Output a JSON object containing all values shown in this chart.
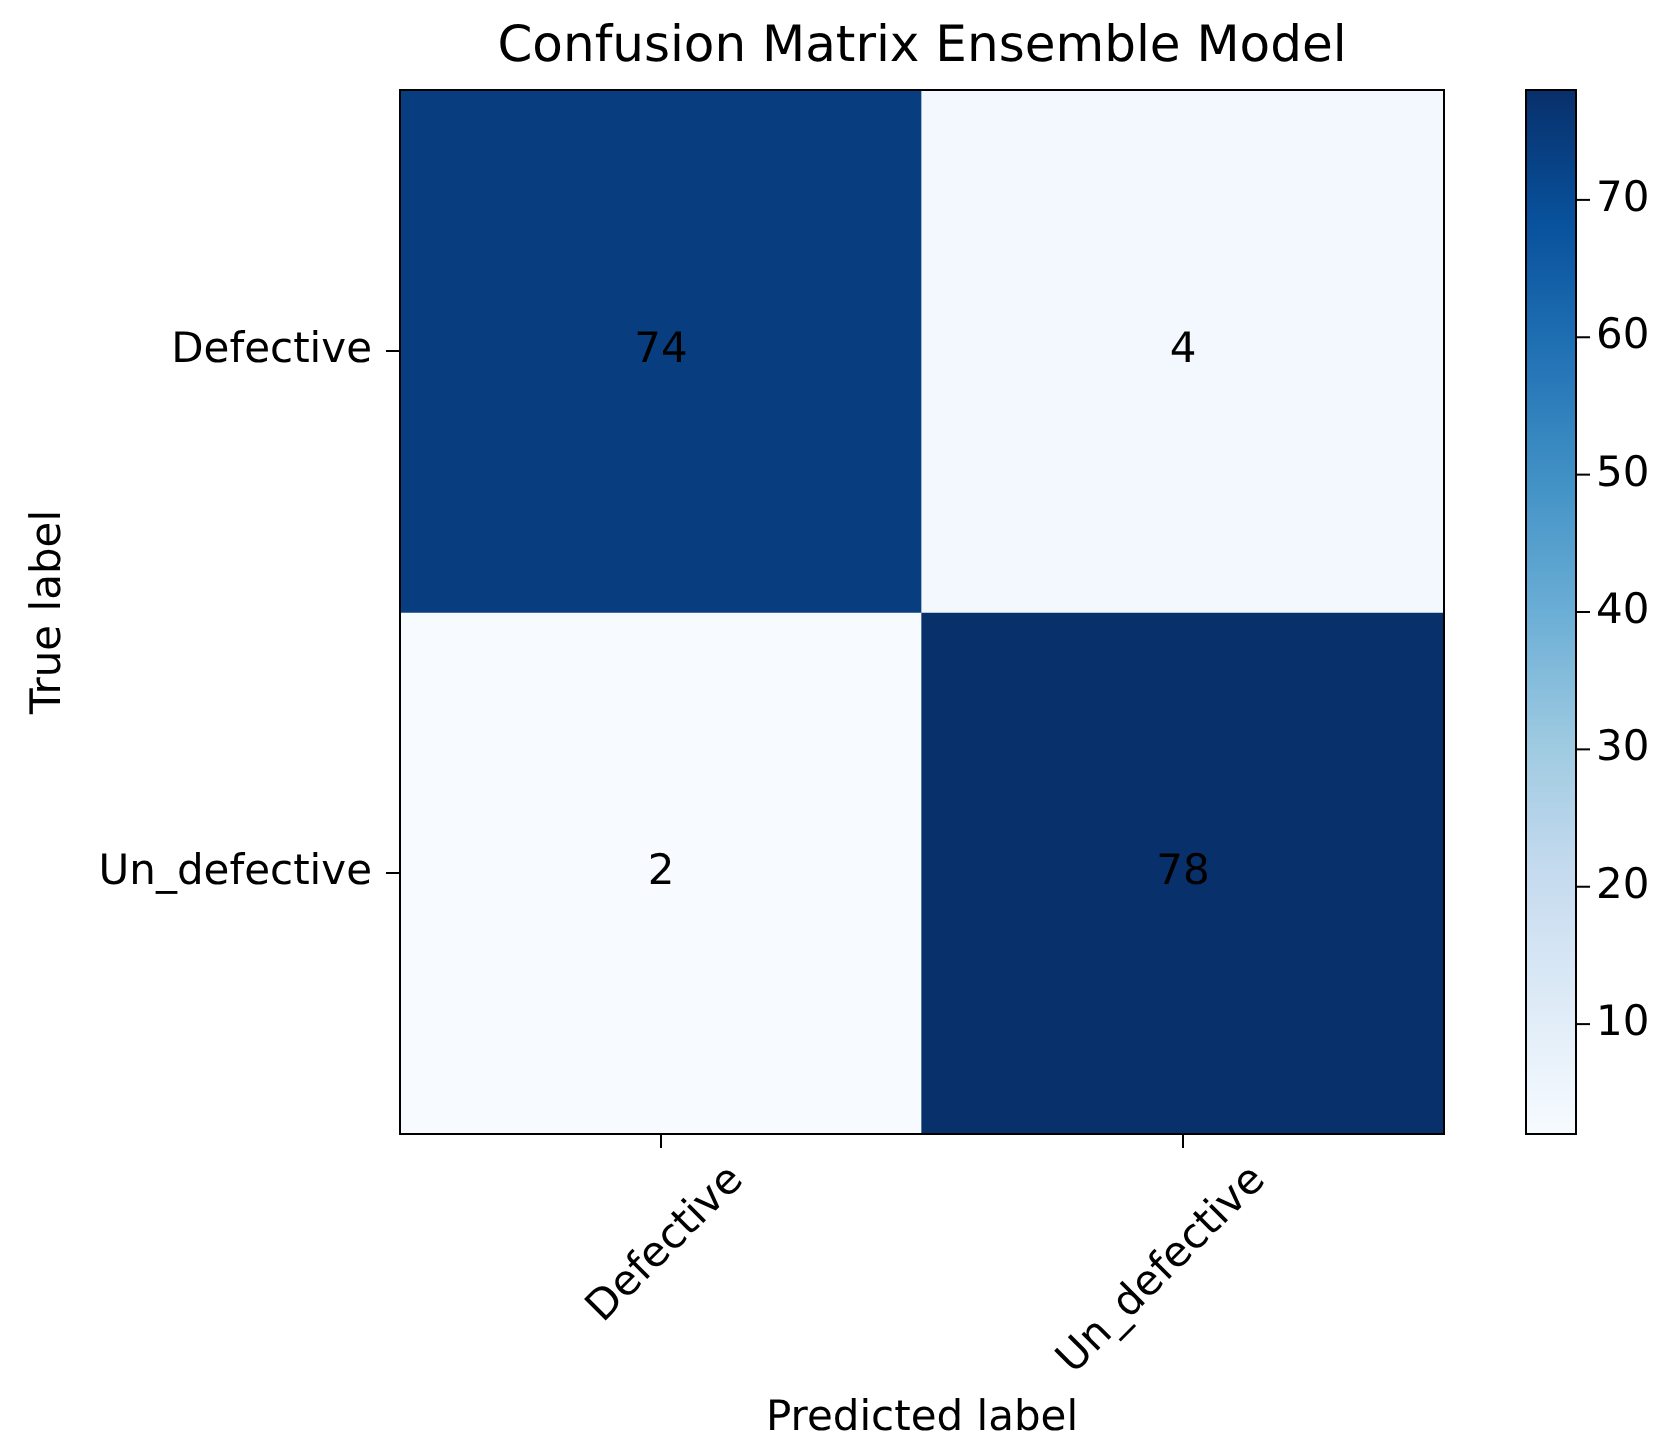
{
  "chart_data": {
    "type": "heatmap",
    "title": "Confusion Matrix Ensemble Model",
    "xlabel": "Predicted label",
    "ylabel": "True label",
    "categories": [
      "Defective",
      "Un_defective"
    ],
    "y_categories": [
      "Defective",
      "Un_defective"
    ],
    "cells": [
      [
        74,
        4
      ],
      [
        2,
        78
      ]
    ],
    "clim": [
      2,
      78
    ],
    "cticks": [
      10,
      20,
      30,
      40,
      50,
      60,
      70
    ],
    "data_labels": true
  }
}
